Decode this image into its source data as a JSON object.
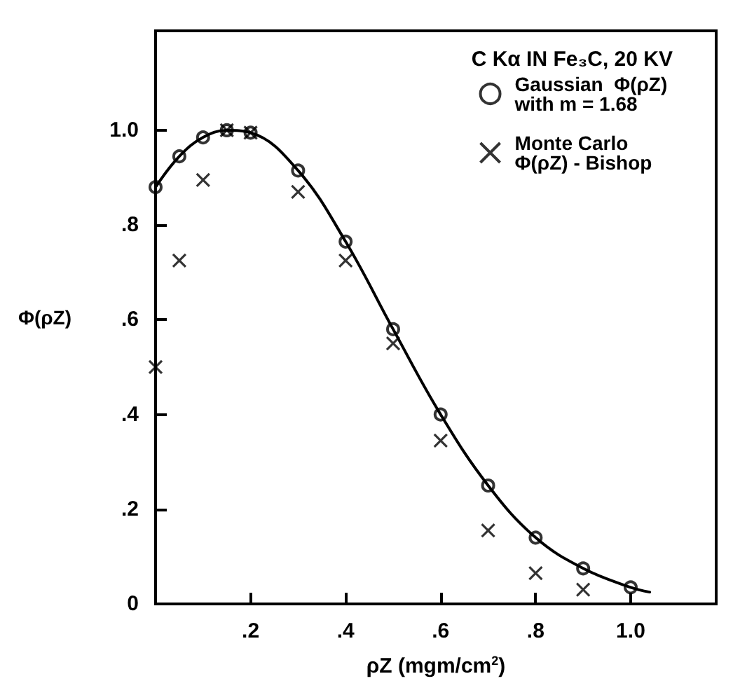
{
  "chart_data": {
    "type": "scatter",
    "title": "C Kα IN Fe₃C, 20 KV",
    "xlabel": "ρZ (mgm/cm$^{2}$)",
    "ylabel": "Φ(ρZ)",
    "xlim": [
      0,
      1.18
    ],
    "ylim": [
      0,
      1.21
    ],
    "xticks": [
      {
        "value": 0.2,
        "label": ".2"
      },
      {
        "value": 0.4,
        "label": ".4"
      },
      {
        "value": 0.6,
        "label": ".6"
      },
      {
        "value": 0.8,
        "label": ".8"
      },
      {
        "value": 1.0,
        "label": "1.0"
      }
    ],
    "yticks": [
      0,
      {
        "value": 0.2,
        "label": ".2"
      },
      {
        "value": 0.4,
        "label": ".4"
      },
      {
        "value": 0.6,
        "label": ".6"
      },
      {
        "value": 0.8,
        "label": ".8"
      },
      {
        "value": 1.0,
        "label": "1.0"
      }
    ],
    "grid": false,
    "legend": "top right",
    "series": [
      {
        "type": "line",
        "marker": "none",
        "line_style": "solid",
        "color": "#000000",
        "x": [
          0,
          0.05,
          0.1,
          0.15,
          0.2,
          0.3,
          0.4,
          0.5,
          0.6,
          0.7,
          0.8,
          0.9,
          1.0,
          1.04
        ],
        "values": [
          0.88,
          0.945,
          0.985,
          1.0,
          0.995,
          0.915,
          0.765,
          0.58,
          0.4,
          0.25,
          0.14,
          0.075,
          0.035,
          0.025
        ]
      },
      {
        "name": "Gaussian  Φ(ρZ) with m = 1.68",
        "marker": "circle",
        "color": "#000000",
        "x": [
          0,
          0.05,
          0.1,
          0.15,
          0.2,
          0.3,
          0.4,
          0.5,
          0.6,
          0.7,
          0.8,
          0.9,
          1.0
        ],
        "values": [
          0.88,
          0.945,
          0.985,
          1.0,
          0.995,
          0.915,
          0.765,
          0.58,
          0.4,
          0.25,
          0.14,
          0.075,
          0.035
        ]
      },
      {
        "name": "Monte Carlo Φ(ρZ) - Bishop",
        "marker": "cross",
        "color": "#000000",
        "x": [
          0,
          0.05,
          0.1,
          0.15,
          0.2,
          0.3,
          0.4,
          0.5,
          0.6,
          0.7,
          0.8,
          0.9
        ],
        "values": [
          0.5,
          0.725,
          0.895,
          1.0,
          0.995,
          0.87,
          0.725,
          0.55,
          0.345,
          0.155,
          0.065,
          0.03
        ]
      }
    ]
  }
}
